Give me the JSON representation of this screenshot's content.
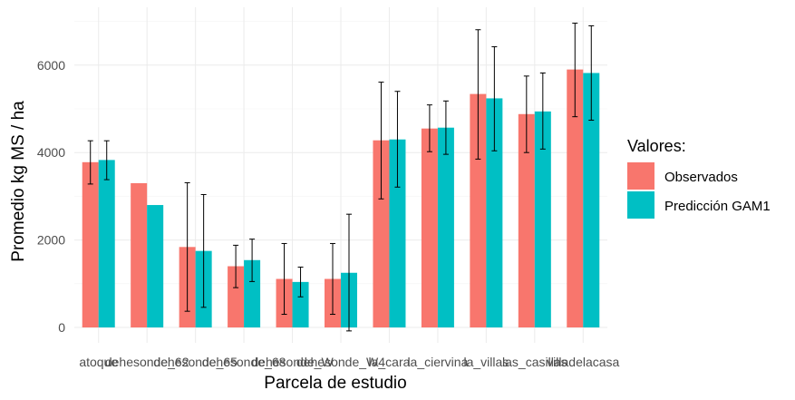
{
  "chart_data": {
    "type": "bar",
    "xlabel": "Parcela de estudio",
    "ylabel": "Promedio kg MS / ha",
    "ylim": [
      -250,
      7200
    ],
    "yticks": [
      0,
      2000,
      4000,
      6000
    ],
    "grid": true,
    "legend_position": "right",
    "legend_title": "Valores:",
    "categories": [
      "atoque",
      "dehesonde_62",
      "dehesonde_65",
      "dehesonde_68",
      "dehesonde_W",
      "dehesonde_W4",
      "la_cara",
      "la_ciervina",
      "la_villas",
      "las_casillas",
      "villadelacasa"
    ],
    "category_labels": [
      "atoque",
      "dehesonde_62",
      "dehesonde_65",
      "dehesonde_68",
      "dehesonde_W",
      "dehesonde_W4",
      "la_cara",
      "la_ciervina",
      "la_villas",
      "las_casillas",
      "villadelacasa"
    ],
    "series": [
      {
        "name": "Observados",
        "color": "#F8766D",
        "values": [
          3780,
          3300,
          1840,
          1400,
          1110,
          1110,
          4280,
          4550,
          5340,
          4880,
          5900
        ],
        "err_low": [
          3280,
          3300,
          370,
          910,
          300,
          300,
          2940,
          4020,
          3850,
          4000,
          4820
        ],
        "err_high": [
          4270,
          3300,
          3310,
          1880,
          1920,
          1920,
          5610,
          5090,
          6810,
          5750,
          6960
        ]
      },
      {
        "name": "Predicción GAM1",
        "color": "#00BFC4",
        "values": [
          3830,
          2800,
          1750,
          1540,
          1040,
          1250,
          4300,
          4570,
          5240,
          4940,
          5820
        ],
        "err_low": [
          3380,
          2800,
          460,
          1050,
          700,
          -80,
          3210,
          3960,
          4040,
          4080,
          4740
        ],
        "err_high": [
          4270,
          2800,
          3040,
          2020,
          1380,
          2590,
          5400,
          5180,
          6420,
          5820,
          6900
        ]
      }
    ]
  }
}
